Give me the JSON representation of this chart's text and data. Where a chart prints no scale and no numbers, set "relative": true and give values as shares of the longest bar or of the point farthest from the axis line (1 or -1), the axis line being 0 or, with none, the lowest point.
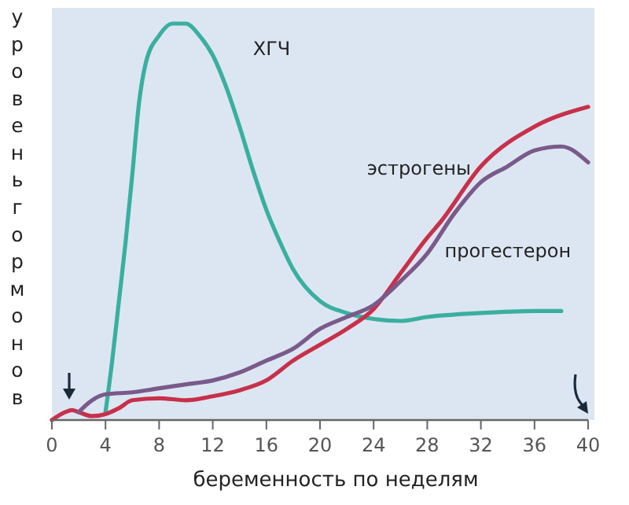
{
  "chart_data": {
    "type": "line",
    "relative": true,
    "xlabel": "беременность по неделям",
    "ylabel": "уровень гормонов",
    "xlim": [
      0,
      40
    ],
    "xticks": [
      0,
      4,
      8,
      12,
      16,
      20,
      24,
      28,
      32,
      36,
      40
    ],
    "grid": false,
    "legend": false,
    "marker": "none",
    "line_style": "solid",
    "series": [
      {
        "name": "ХГЧ",
        "color": "#3aafa0",
        "x": [
          4,
          4.5,
          5,
          5.5,
          6,
          6.5,
          7,
          8,
          9,
          10,
          11,
          12,
          13,
          14,
          15,
          16,
          17,
          18,
          20,
          22,
          24,
          26,
          28,
          32,
          36,
          38
        ],
        "values": [
          0.02,
          0.15,
          0.3,
          0.45,
          0.62,
          0.8,
          0.9,
          0.97,
          1.0,
          1.0,
          0.97,
          0.92,
          0.84,
          0.74,
          0.63,
          0.53,
          0.45,
          0.38,
          0.3,
          0.27,
          0.255,
          0.25,
          0.26,
          0.27,
          0.275,
          0.275
        ]
      },
      {
        "name": "эстрогены",
        "color": "#c8304a",
        "x": [
          0,
          1,
          1.5,
          2,
          3,
          4,
          5,
          6,
          8,
          10,
          12,
          14,
          16,
          18,
          20,
          22,
          24,
          26,
          28,
          29,
          32,
          36,
          40
        ],
        "values": [
          0,
          0.02,
          0.025,
          0.02,
          0.01,
          0.015,
          0.03,
          0.05,
          0.055,
          0.05,
          0.06,
          0.075,
          0.1,
          0.15,
          0.19,
          0.23,
          0.28,
          0.37,
          0.46,
          0.5,
          0.64,
          0.74,
          0.79
        ]
      },
      {
        "name": "прогестерон",
        "color": "#7a5a8a",
        "x": [
          2,
          3,
          4,
          6,
          8,
          10,
          12,
          14,
          16,
          18,
          20,
          22,
          24,
          26,
          28,
          30,
          32,
          34,
          36,
          38,
          40
        ],
        "values": [
          0.02,
          0.05,
          0.065,
          0.07,
          0.08,
          0.09,
          0.1,
          0.12,
          0.15,
          0.18,
          0.23,
          0.26,
          0.29,
          0.35,
          0.42,
          0.52,
          0.6,
          0.64,
          0.68,
          0.69,
          0.65
        ]
      }
    ]
  }
}
